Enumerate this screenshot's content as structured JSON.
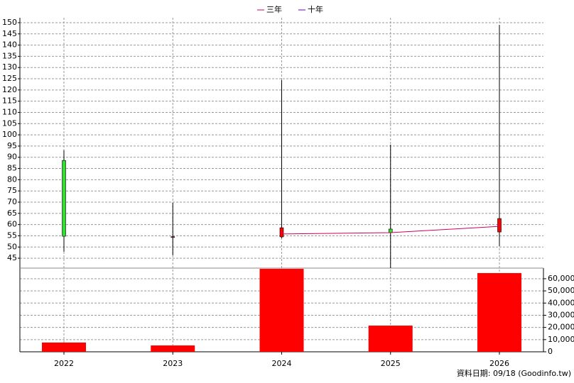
{
  "chart_data": {
    "type": "candlestick",
    "categories": [
      "2022",
      "2023",
      "2024",
      "2025",
      "2026"
    ],
    "open": [
      88.6,
      54.5,
      54.5,
      58.0,
      56.7
    ],
    "high": [
      93.1,
      69.7,
      124.4,
      95.6,
      149.0
    ],
    "low": [
      47.9,
      46.3,
      53.9,
      40.6,
      50.4
    ],
    "close": [
      54.8,
      54.6,
      58.6,
      56.4,
      62.7
    ],
    "up_color": "#ff0000",
    "down_color": "#33dd33",
    "ylim": [
      40.6,
      152.2
    ],
    "yticks": [
      45,
      50,
      55,
      60,
      65,
      70,
      75,
      80,
      85,
      90,
      95,
      100,
      105,
      110,
      115,
      120,
      125,
      130,
      135,
      140,
      145,
      150
    ],
    "grid": true,
    "series": [
      {
        "name": "三年",
        "color": "#cc0066",
        "values": [
          null,
          null,
          55.8,
          56.4,
          59.2
        ]
      },
      {
        "name": "十年",
        "color": "#6600cc",
        "values": [
          null,
          null,
          null,
          null,
          null
        ]
      }
    ],
    "volume": {
      "color": "#ff0000",
      "values": [
        7600,
        5200,
        68100,
        21500,
        64600
      ],
      "ylim": [
        0,
        68700
      ],
      "yticks": [
        0,
        {
          "value": 10000,
          "label": "10,000"
        },
        {
          "value": 20000,
          "label": "20,000"
        },
        {
          "value": 30000,
          "label": "30,000"
        },
        {
          "value": 40000,
          "label": "40,000"
        },
        {
          "value": 50000,
          "label": "50,000"
        },
        {
          "value": 60000,
          "label": "60,000"
        }
      ]
    },
    "note": "資料日期: 09/18  (Goodinfo.tw)"
  }
}
